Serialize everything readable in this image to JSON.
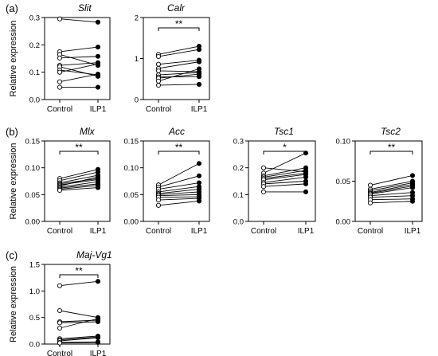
{
  "ylabel": "Relative expression",
  "chart_data": [
    {
      "type": "scatter",
      "panel_label": "(a)",
      "title": "Slit",
      "categories": [
        "Control",
        "ILP1"
      ],
      "ylim": [
        0,
        0.3
      ],
      "yticks": [
        "0.0",
        "0.1",
        "0.2",
        "0.3"
      ],
      "sig": "",
      "pairs": [
        [
          0.295,
          0.283
        ],
        [
          0.175,
          0.192
        ],
        [
          0.165,
          0.125
        ],
        [
          0.152,
          0.158
        ],
        [
          0.125,
          0.135
        ],
        [
          0.12,
          0.085
        ],
        [
          0.108,
          0.09
        ],
        [
          0.1,
          0.13
        ],
        [
          0.065,
          0.093
        ],
        [
          0.045,
          0.045
        ]
      ]
    },
    {
      "type": "scatter",
      "panel_label": "",
      "title": "Calr",
      "categories": [
        "Control",
        "ILP1"
      ],
      "ylim": [
        0,
        2
      ],
      "yticks": [
        "0",
        "1",
        "2"
      ],
      "sig": "**",
      "pairs": [
        [
          1.1,
          1.3
        ],
        [
          1.05,
          1.22
        ],
        [
          0.86,
          0.96
        ],
        [
          0.76,
          0.92
        ],
        [
          0.7,
          0.68
        ],
        [
          0.6,
          0.66
        ],
        [
          0.55,
          0.56
        ],
        [
          0.52,
          0.62
        ],
        [
          0.45,
          0.75
        ],
        [
          0.35,
          0.37
        ]
      ]
    },
    {
      "type": "scatter",
      "panel_label": "(b)",
      "title": "Mlx",
      "categories": [
        "Control",
        "ILP1"
      ],
      "ylim": [
        0,
        0.15
      ],
      "yticks": [
        "0.00",
        "0.05",
        "0.10",
        "0.15"
      ],
      "sig": "**",
      "pairs": [
        [
          0.08,
          0.097
        ],
        [
          0.076,
          0.092
        ],
        [
          0.072,
          0.086
        ],
        [
          0.07,
          0.08
        ],
        [
          0.068,
          0.078
        ],
        [
          0.066,
          0.083
        ],
        [
          0.064,
          0.074
        ],
        [
          0.062,
          0.07
        ],
        [
          0.06,
          0.067
        ],
        [
          0.058,
          0.063
        ]
      ]
    },
    {
      "type": "scatter",
      "panel_label": "",
      "title": "Acc",
      "categories": [
        "Control",
        "ILP1"
      ],
      "ylim": [
        0,
        0.15
      ],
      "yticks": [
        "0.00",
        "0.05",
        "0.10",
        "0.15"
      ],
      "sig": "**",
      "pairs": [
        [
          0.068,
          0.108
        ],
        [
          0.064,
          0.085
        ],
        [
          0.06,
          0.072
        ],
        [
          0.055,
          0.065
        ],
        [
          0.052,
          0.06
        ],
        [
          0.05,
          0.055
        ],
        [
          0.048,
          0.05
        ],
        [
          0.045,
          0.046
        ],
        [
          0.04,
          0.043
        ],
        [
          0.03,
          0.038
        ]
      ]
    },
    {
      "type": "scatter",
      "panel_label": "",
      "title": "Tsc1",
      "categories": [
        "Control",
        "ILP1"
      ],
      "ylim": [
        0,
        0.3
      ],
      "yticks": [
        "0.0",
        "0.1",
        "0.2",
        "0.3"
      ],
      "sig": "*",
      "pairs": [
        [
          0.2,
          0.185
        ],
        [
          0.18,
          0.255
        ],
        [
          0.17,
          0.2
        ],
        [
          0.165,
          0.19
        ],
        [
          0.16,
          0.18
        ],
        [
          0.155,
          0.175
        ],
        [
          0.145,
          0.165
        ],
        [
          0.14,
          0.15
        ],
        [
          0.13,
          0.14
        ],
        [
          0.11,
          0.11
        ]
      ]
    },
    {
      "type": "scatter",
      "panel_label": "",
      "title": "Tsc2",
      "categories": [
        "Control",
        "ILP1"
      ],
      "ylim": [
        0,
        0.1
      ],
      "yticks": [
        "0.00",
        "0.05",
        "0.10"
      ],
      "sig": "**",
      "pairs": [
        [
          0.045,
          0.057
        ],
        [
          0.04,
          0.05
        ],
        [
          0.038,
          0.048
        ],
        [
          0.036,
          0.046
        ],
        [
          0.035,
          0.044
        ],
        [
          0.034,
          0.042
        ],
        [
          0.032,
          0.036
        ],
        [
          0.03,
          0.032
        ],
        [
          0.027,
          0.028
        ],
        [
          0.023,
          0.025
        ]
      ]
    },
    {
      "type": "scatter",
      "panel_label": "(c)",
      "title": "Maj-Vg1",
      "categories": [
        "Control",
        "ILP1"
      ],
      "ylim": [
        0,
        1.5
      ],
      "yticks": [
        "0.0",
        "0.5",
        "1.0",
        "1.5"
      ],
      "sig": "**",
      "pairs": [
        [
          1.1,
          1.18
        ],
        [
          0.63,
          0.5
        ],
        [
          0.42,
          0.45
        ],
        [
          0.4,
          0.42
        ],
        [
          0.3,
          0.48
        ],
        [
          0.1,
          0.15
        ],
        [
          0.08,
          0.13
        ],
        [
          0.06,
          0.12
        ],
        [
          0.03,
          0.04
        ],
        [
          0.02,
          0.03
        ]
      ]
    }
  ]
}
